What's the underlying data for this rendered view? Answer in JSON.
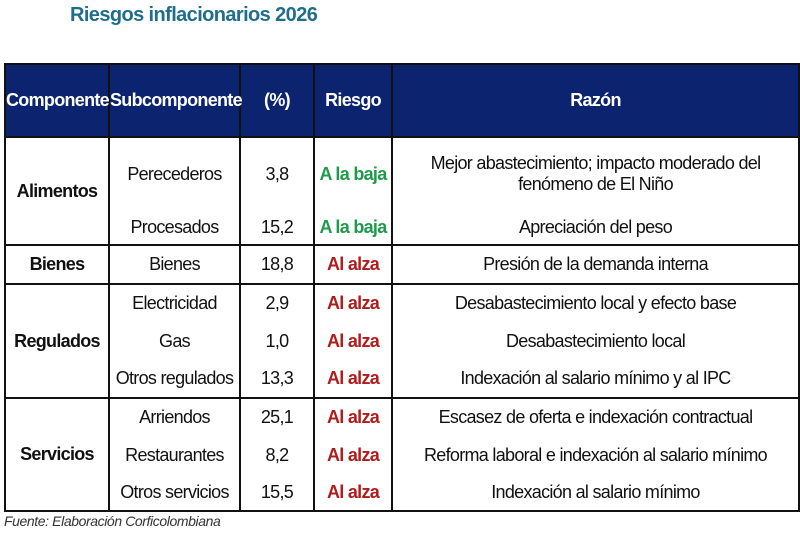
{
  "title": "Riesgos inflacionarios 2026",
  "headers": [
    "Componente",
    "Subcomponente",
    "(%)",
    "Riesgo",
    "Razón"
  ],
  "groups": [
    {
      "component": "Alimentos",
      "rows": [
        {
          "sub": "Perecederos",
          "pct": "3,8",
          "risk": "A la baja",
          "reason": "Mejor abastecimiento; impacto moderado del fenómeno de El Niño"
        },
        {
          "sub": "Procesados",
          "pct": "15,2",
          "risk": "A la baja",
          "reason": "Apreciación del peso"
        }
      ]
    },
    {
      "component": "Bienes",
      "rows": [
        {
          "sub": "Bienes",
          "pct": "18,8",
          "risk": "Al alza",
          "reason": "Presión de la demanda interna"
        }
      ]
    },
    {
      "component": "Regulados",
      "rows": [
        {
          "sub": "Electricidad",
          "pct": "2,9",
          "risk": "Al alza",
          "reason": "Desabastecimiento local y efecto base"
        },
        {
          "sub": "Gas",
          "pct": "1,0",
          "risk": "Al alza",
          "reason": "Desabastecimiento local"
        },
        {
          "sub": "Otros regulados",
          "pct": "13,3",
          "risk": "Al alza",
          "reason": "Indexación al salario mínimo y al IPC"
        }
      ]
    },
    {
      "component": "Servicios",
      "rows": [
        {
          "sub": "Arriendos",
          "pct": "25,1",
          "risk": "Al alza",
          "reason": "Escasez de oferta e indexación contractual"
        },
        {
          "sub": "Restaurantes",
          "pct": "8,2",
          "risk": "Al alza",
          "reason": "Reforma laboral e indexación al salario mínimo"
        },
        {
          "sub": "Otros servicios",
          "pct": "15,5",
          "risk": "Al alza",
          "reason": "Indexación al salario mínimo"
        }
      ]
    }
  ],
  "source": "Fuente: Elaboración Corficolombiana",
  "colors": {
    "header_bg": "#0c2470",
    "up": "#b01c1c",
    "down": "#1e9a4a",
    "title": "#1f6e8c"
  }
}
